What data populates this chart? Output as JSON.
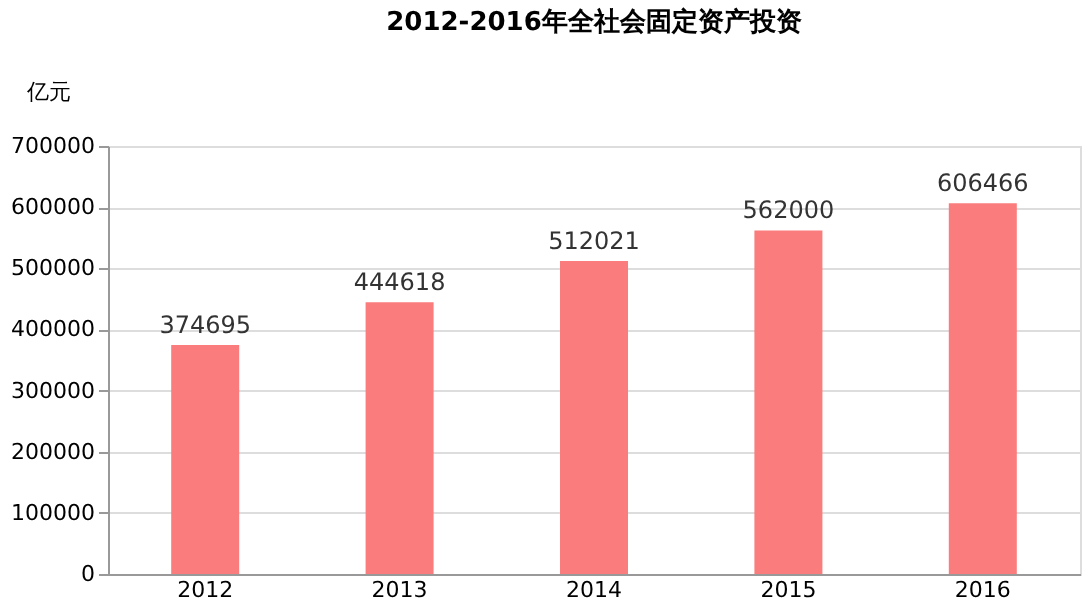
{
  "chart_data": {
    "type": "bar",
    "title": "2012-2016年全社会固定资产投资",
    "ylabel": "亿元",
    "categories": [
      "2012",
      "2013",
      "2014",
      "2015",
      "2016"
    ],
    "values": [
      374695,
      444618,
      512021,
      562000,
      606466
    ],
    "color": "#fb7c7c",
    "ylim": [
      0,
      700000
    ],
    "yticks": [
      0,
      100000,
      200000,
      300000,
      400000,
      500000,
      600000,
      700000
    ],
    "grid": "y",
    "data_labels": true
  }
}
